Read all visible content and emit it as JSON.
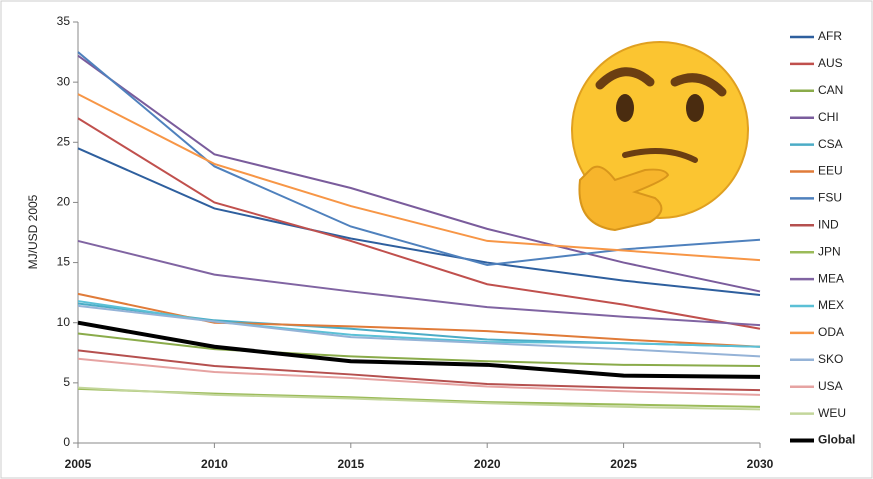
{
  "chart_data": {
    "type": "line",
    "ylabel": "MJ/USD 2005",
    "x": [
      2005,
      2010,
      2015,
      2020,
      2025,
      2030
    ],
    "xlim": [
      2005,
      2030
    ],
    "xticks": [
      2005,
      2010,
      2015,
      2020,
      2025,
      2030
    ],
    "ylim": [
      0,
      35
    ],
    "yticks": [
      0,
      5,
      10,
      15,
      20,
      25,
      30,
      35
    ],
    "grid": false,
    "legend": "right",
    "series": [
      {
        "name": "AFR",
        "color": "#2e5f9e",
        "values": [
          24.5,
          19.5,
          17,
          15,
          13.5,
          12.3
        ]
      },
      {
        "name": "AUS",
        "color": "#c0504d",
        "values": [
          27,
          20,
          16.8,
          13.2,
          11.5,
          9.5
        ]
      },
      {
        "name": "CAN",
        "color": "#8aab4a",
        "values": [
          9.1,
          7.8,
          7.2,
          6.8,
          6.5,
          6.4
        ]
      },
      {
        "name": "CHI",
        "color": "#7a5c9c",
        "values": [
          32.2,
          24,
          21.2,
          17.8,
          15,
          12.6
        ]
      },
      {
        "name": "CSA",
        "color": "#4bacc6",
        "values": [
          11.6,
          10.2,
          9.5,
          8.6,
          8.3,
          8.0
        ]
      },
      {
        "name": "EEU",
        "color": "#e07b39",
        "values": [
          12.4,
          10,
          9.7,
          9.3,
          8.6,
          8.0
        ]
      },
      {
        "name": "FSU",
        "color": "#4f81bd",
        "values": [
          32.5,
          23,
          18,
          14.8,
          16.1,
          16.9
        ]
      },
      {
        "name": "IND",
        "color": "#b5504f",
        "values": [
          7.7,
          6.4,
          5.7,
          4.9,
          4.6,
          4.4
        ]
      },
      {
        "name": "JPN",
        "color": "#9bbb59",
        "values": [
          4.5,
          4.1,
          3.8,
          3.4,
          3.2,
          3.0
        ]
      },
      {
        "name": "MEA",
        "color": "#8064a2",
        "values": [
          16.8,
          14,
          12.6,
          11.3,
          10.5,
          9.8
        ]
      },
      {
        "name": "MEX",
        "color": "#5bc0d6",
        "values": [
          11.8,
          10.1,
          9.0,
          8.4,
          8.3,
          8.0
        ]
      },
      {
        "name": "ODA",
        "color": "#f79646",
        "values": [
          29,
          23.2,
          19.7,
          16.8,
          16,
          15.2
        ]
      },
      {
        "name": "SKO",
        "color": "#95b3d7",
        "values": [
          11.4,
          10.1,
          8.8,
          8.3,
          7.8,
          7.2
        ]
      },
      {
        "name": "USA",
        "color": "#e6a3a2",
        "values": [
          7.0,
          5.9,
          5.4,
          4.7,
          4.3,
          4.0
        ]
      },
      {
        "name": "WEU",
        "color": "#c3d69b",
        "values": [
          4.6,
          4.0,
          3.7,
          3.3,
          3.0,
          2.8
        ]
      },
      {
        "name": "Global",
        "color": "#000000",
        "values": [
          10,
          8,
          6.8,
          6.5,
          5.6,
          5.5
        ]
      }
    ]
  }
}
